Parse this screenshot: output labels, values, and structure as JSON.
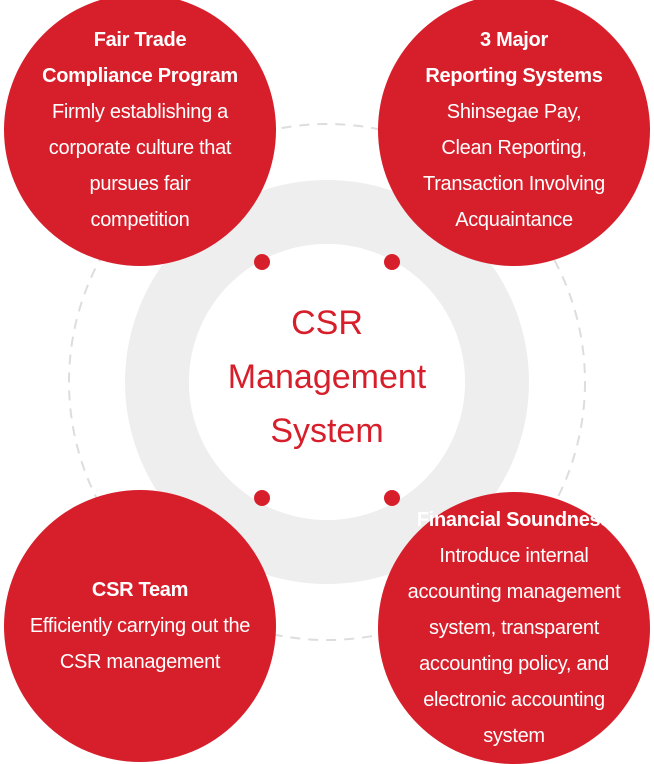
{
  "center": {
    "title_lines": [
      "CSR",
      "Management",
      "System"
    ]
  },
  "top_left": {
    "title_lines": [
      "Fair Trade",
      "Compliance Program"
    ],
    "desc_lines": [
      "Firmly establishing a",
      "corporate culture that",
      "pursues fair",
      "competition"
    ]
  },
  "top_right": {
    "title_lines": [
      "3 Major",
      "Reporting Systems"
    ],
    "desc_lines": [
      "Shinsegae Pay,",
      "Clean Reporting,",
      "Transaction Involving",
      "Acquaintance"
    ]
  },
  "bottom_left": {
    "title_lines": [
      "CSR Team"
    ],
    "desc_lines": [
      "Efficiently carrying out the",
      "CSR management"
    ]
  },
  "bottom_right": {
    "title_lines": [
      "Financial Soundness"
    ],
    "desc_lines": [
      "Introduce internal",
      "accounting management",
      "system, transparent",
      "accounting policy, and",
      "electronic accounting",
      "system"
    ]
  },
  "colors": {
    "accent": "#d71f2b",
    "ring": "#eeeeee",
    "dash": "#dddddd"
  }
}
